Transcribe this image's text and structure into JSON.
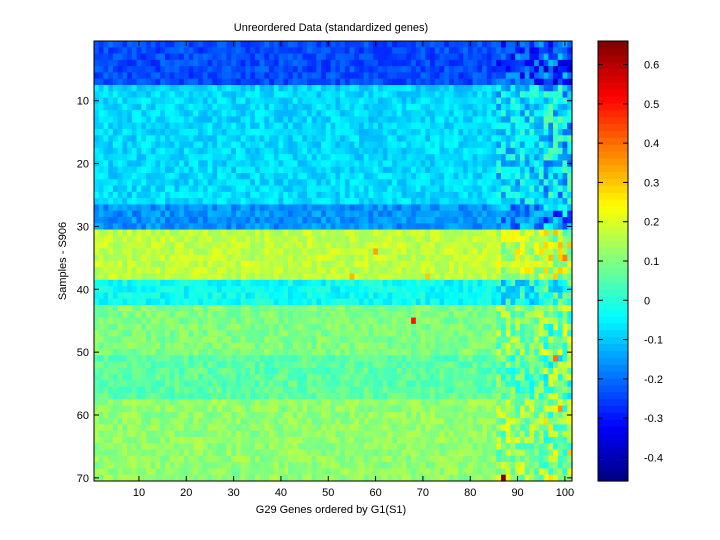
{
  "chart_data": {
    "type": "heatmap",
    "title": "Unreordered Data (standardized genes)",
    "xlabel": "G29 Genes ordered by G1(S1)",
    "ylabel": "Samples - S906",
    "n_cols": 101,
    "n_rows": 70,
    "xlim": [
      0.5,
      101.5
    ],
    "ylim": [
      0.5,
      70.5
    ],
    "x_ticks": [
      10,
      20,
      30,
      40,
      50,
      60,
      70,
      80,
      90,
      100
    ],
    "y_ticks": [
      10,
      20,
      30,
      40,
      50,
      60,
      70
    ],
    "colorbar": {
      "colormap": "jet",
      "min": -0.46,
      "max": 0.66,
      "ticks": [
        -0.4,
        -0.3,
        -0.2,
        -0.1,
        0,
        0.1,
        0.2,
        0.3,
        0.4,
        0.5,
        0.6
      ]
    },
    "row_bands": [
      {
        "rows": [
          1,
          7
        ],
        "mean": -0.24
      },
      {
        "rows": [
          8,
          26
        ],
        "mean": -0.08
      },
      {
        "rows": [
          27,
          30
        ],
        "mean": -0.16
      },
      {
        "rows": [
          31,
          38
        ],
        "mean": 0.17
      },
      {
        "rows": [
          39,
          42
        ],
        "mean": -0.03
      },
      {
        "rows": [
          43,
          50
        ],
        "mean": 0.1
      },
      {
        "rows": [
          51,
          57
        ],
        "mean": 0.06
      },
      {
        "rows": [
          58,
          70
        ],
        "mean": 0.12
      }
    ],
    "hotspots": [
      {
        "col": 87,
        "row": 70,
        "value": 0.66
      },
      {
        "col": 68,
        "row": 45,
        "value": 0.5
      },
      {
        "col": 60,
        "row": 34,
        "value": 0.34
      },
      {
        "col": 55,
        "row": 38,
        "value": 0.32
      },
      {
        "col": 71,
        "row": 38,
        "value": 0.3
      },
      {
        "col": 98,
        "row": 51,
        "value": 0.4
      },
      {
        "col": 99,
        "row": 59,
        "value": 0.36
      },
      {
        "col": 100,
        "row": 35,
        "value": 0.38
      },
      {
        "col": 101,
        "row": 66,
        "value": 0.3
      }
    ]
  }
}
